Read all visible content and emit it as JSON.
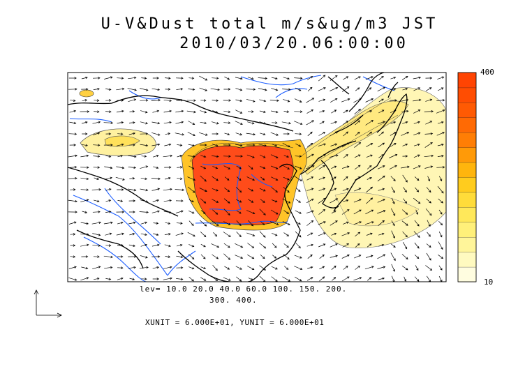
{
  "title": {
    "line1": "U-V&Dust total m/s&ug/m3 JST",
    "line2": "2010/03/20.06:00:00"
  },
  "legend_text": {
    "levels_line1": "lev= 10.0 20.0 40.0 60.0 100. 150. 200.",
    "levels_line2": "300. 400.",
    "units": "XUNIT = 6.000E+01, YUNIT = 6.000E+01"
  },
  "colorbar": {
    "max_label": "400",
    "min_label": "10",
    "levels": [
      10,
      20,
      40,
      60,
      100,
      150,
      200,
      300,
      400
    ],
    "colors": [
      "#fffde0",
      "#fffac0",
      "#fff59a",
      "#fff07a",
      "#ffe85a",
      "#ffdc3a",
      "#ffcc1e",
      "#ffb50d",
      "#ff9a08",
      "#ff7e05",
      "#ff6a04",
      "#ff5a03",
      "#ff4d02",
      "#ff4402"
    ]
  },
  "colors": {
    "coast": "#000000",
    "rivers": "#1a5cff",
    "high_dust": "#ff4c1a",
    "mid_dust": "#ffd21e",
    "low_dust": "#fff7b0"
  }
}
